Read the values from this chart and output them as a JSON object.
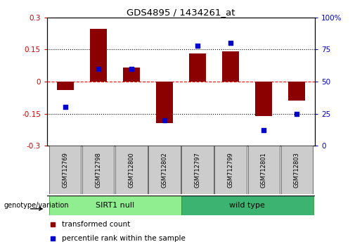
{
  "title": "GDS4895 / 1434261_at",
  "samples": [
    "GSM712769",
    "GSM712798",
    "GSM712800",
    "GSM712802",
    "GSM712797",
    "GSM712799",
    "GSM712801",
    "GSM712803"
  ],
  "transformed_count": [
    -0.04,
    0.245,
    0.065,
    -0.195,
    0.13,
    0.14,
    -0.16,
    -0.09
  ],
  "percentile_rank": [
    30,
    60,
    60,
    20,
    78,
    80,
    12,
    25
  ],
  "groups": [
    {
      "label": "SIRT1 null",
      "start": 0,
      "end": 4,
      "color": "#90EE90"
    },
    {
      "label": "wild type",
      "start": 4,
      "end": 8,
      "color": "#3CB371"
    }
  ],
  "bar_color": "#8B0000",
  "dot_color": "#0000CD",
  "ylim_left": [
    -0.3,
    0.3
  ],
  "ylim_right": [
    0,
    100
  ],
  "yticks_left": [
    -0.3,
    -0.15,
    0,
    0.15,
    0.3
  ],
  "yticks_right": [
    0,
    25,
    50,
    75,
    100
  ],
  "ytick_labels_left": [
    "-0.3",
    "-0.15",
    "0",
    "0.15",
    "0.3"
  ],
  "ytick_labels_right": [
    "0",
    "25",
    "50",
    "75",
    "100%"
  ],
  "hlines": [
    0.15,
    0.0,
    -0.15
  ],
  "hline_styles": [
    "dotted",
    "dashed",
    "dotted"
  ],
  "hline_colors": [
    "black",
    "red",
    "black"
  ],
  "left_tick_color": "#CC0000",
  "right_tick_color": "#0000CC",
  "legend_items": [
    {
      "label": "transformed count",
      "color": "#8B0000"
    },
    {
      "label": "percentile rank within the sample",
      "color": "#0000CD"
    }
  ],
  "genotype_label": "genotype/variation",
  "bar_width": 0.5,
  "xlim": [
    -0.55,
    7.55
  ],
  "fig_width": 5.15,
  "fig_height": 3.54,
  "dpi": 100
}
